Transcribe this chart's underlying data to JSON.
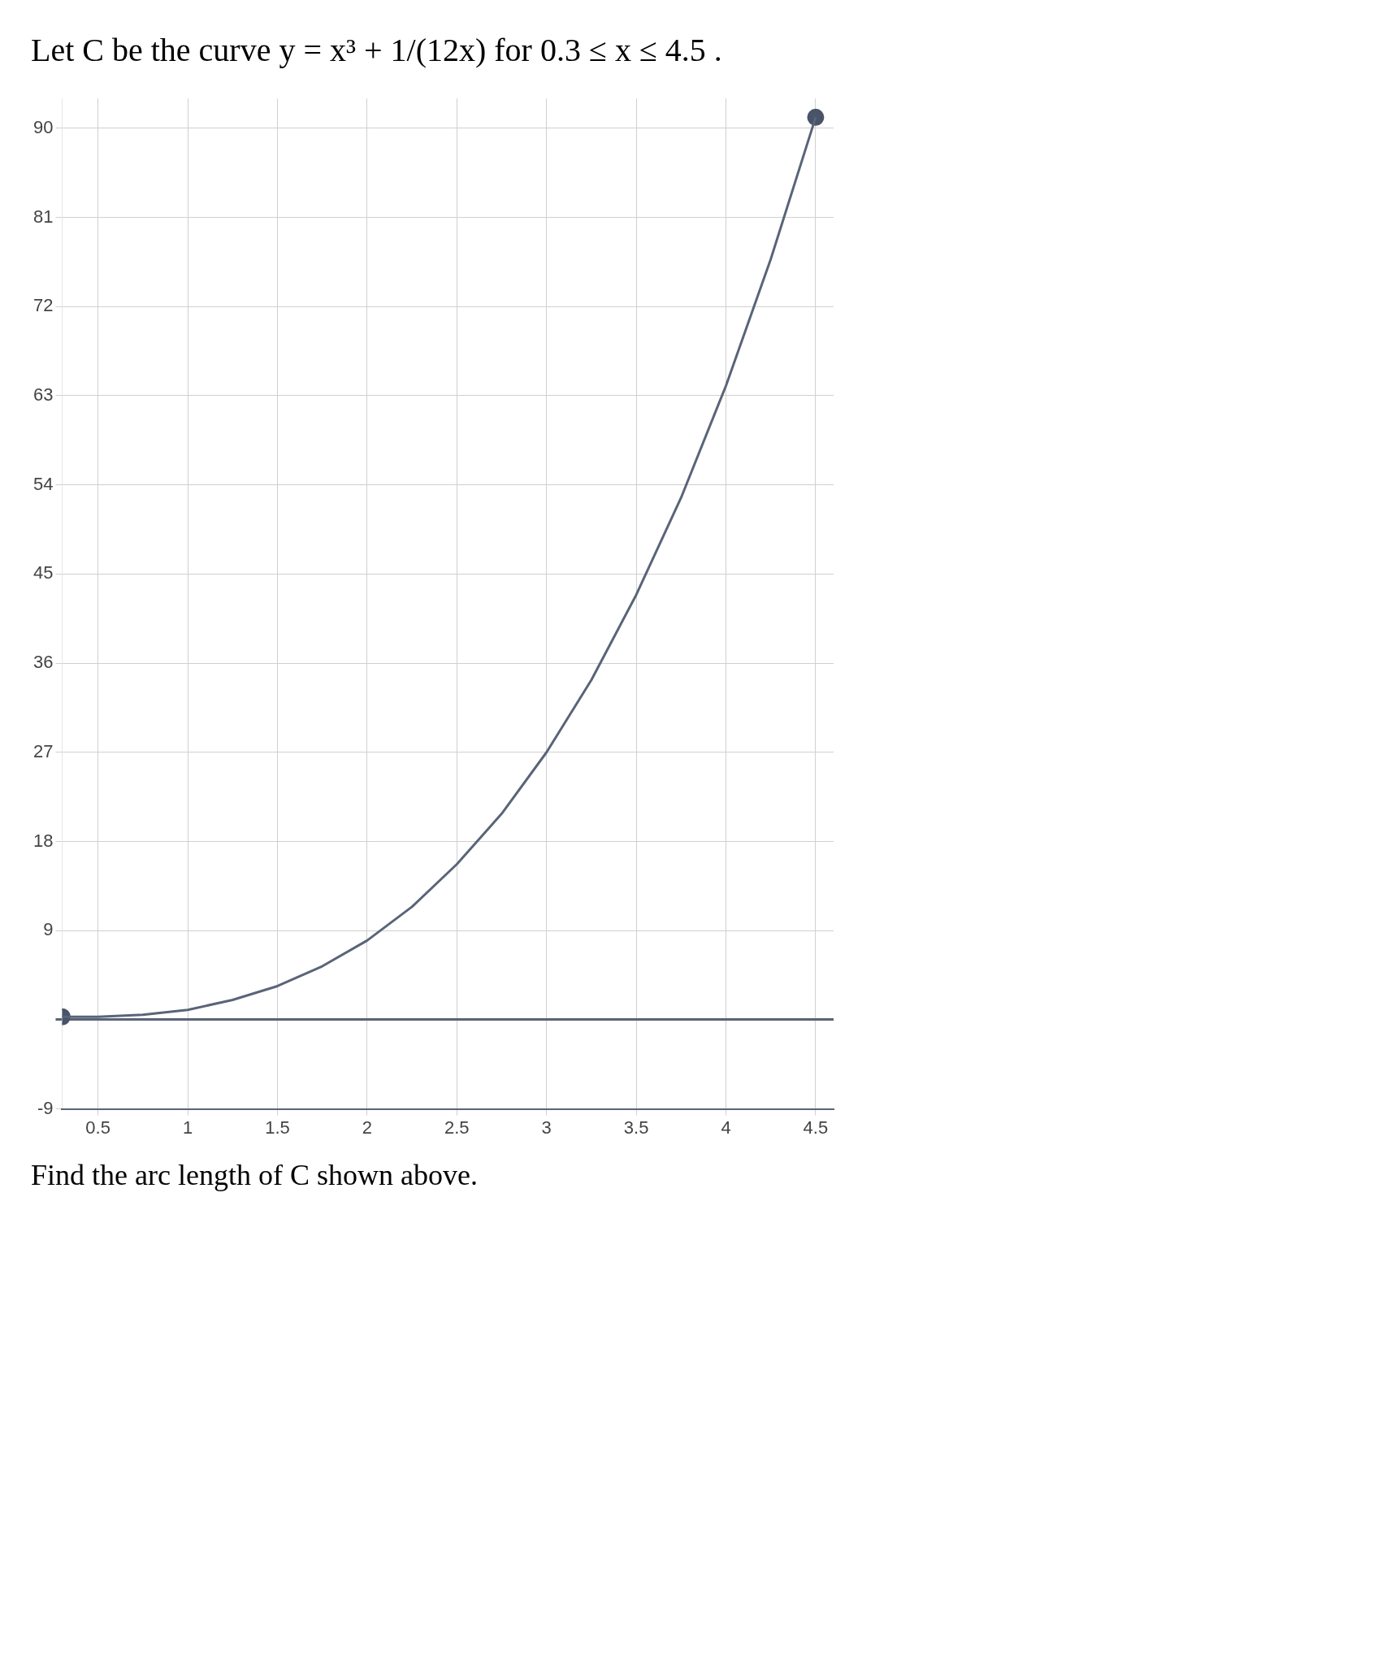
{
  "chart_data": {
    "type": "line",
    "title": "Let C be the curve y = x³ + 1/(12x) for 0.3 ≤ x ≤ 4.5 .",
    "annotations": [
      "Find the arc length of C shown above."
    ],
    "series": [
      {
        "color": "#5a6478",
        "marker": "none",
        "x": [
          0.3,
          0.5,
          0.75,
          1,
          1.25,
          1.5,
          1.75,
          2,
          2.25,
          2.5,
          2.75,
          3,
          3.25,
          3.5,
          3.75,
          4,
          4.25,
          4.5
        ],
        "values": [
          0.3,
          0.3,
          0.5,
          1,
          2,
          3.4,
          5.4,
          8,
          11.4,
          15.7,
          20.8,
          27,
          34.3,
          42.9,
          52.7,
          64,
          76.8,
          91.1
        ]
      },
      {
        "type": "scatter",
        "color": "#4a5468",
        "marker": "circle",
        "x": [
          0.3,
          4.5
        ],
        "values": [
          0.3,
          91.1
        ]
      }
    ],
    "xlim": [
      0.3,
      4.6
    ],
    "ylim": [
      -9,
      93
    ],
    "xticks": [
      0.5,
      1,
      1.5,
      2,
      2.5,
      3,
      3.5,
      4,
      4.5
    ],
    "yticks": [
      -9,
      {
        "value": 0,
        "label": null
      },
      9,
      18,
      27,
      36,
      45,
      54,
      63,
      72,
      81,
      90
    ],
    "grid": true,
    "legend": false
  }
}
